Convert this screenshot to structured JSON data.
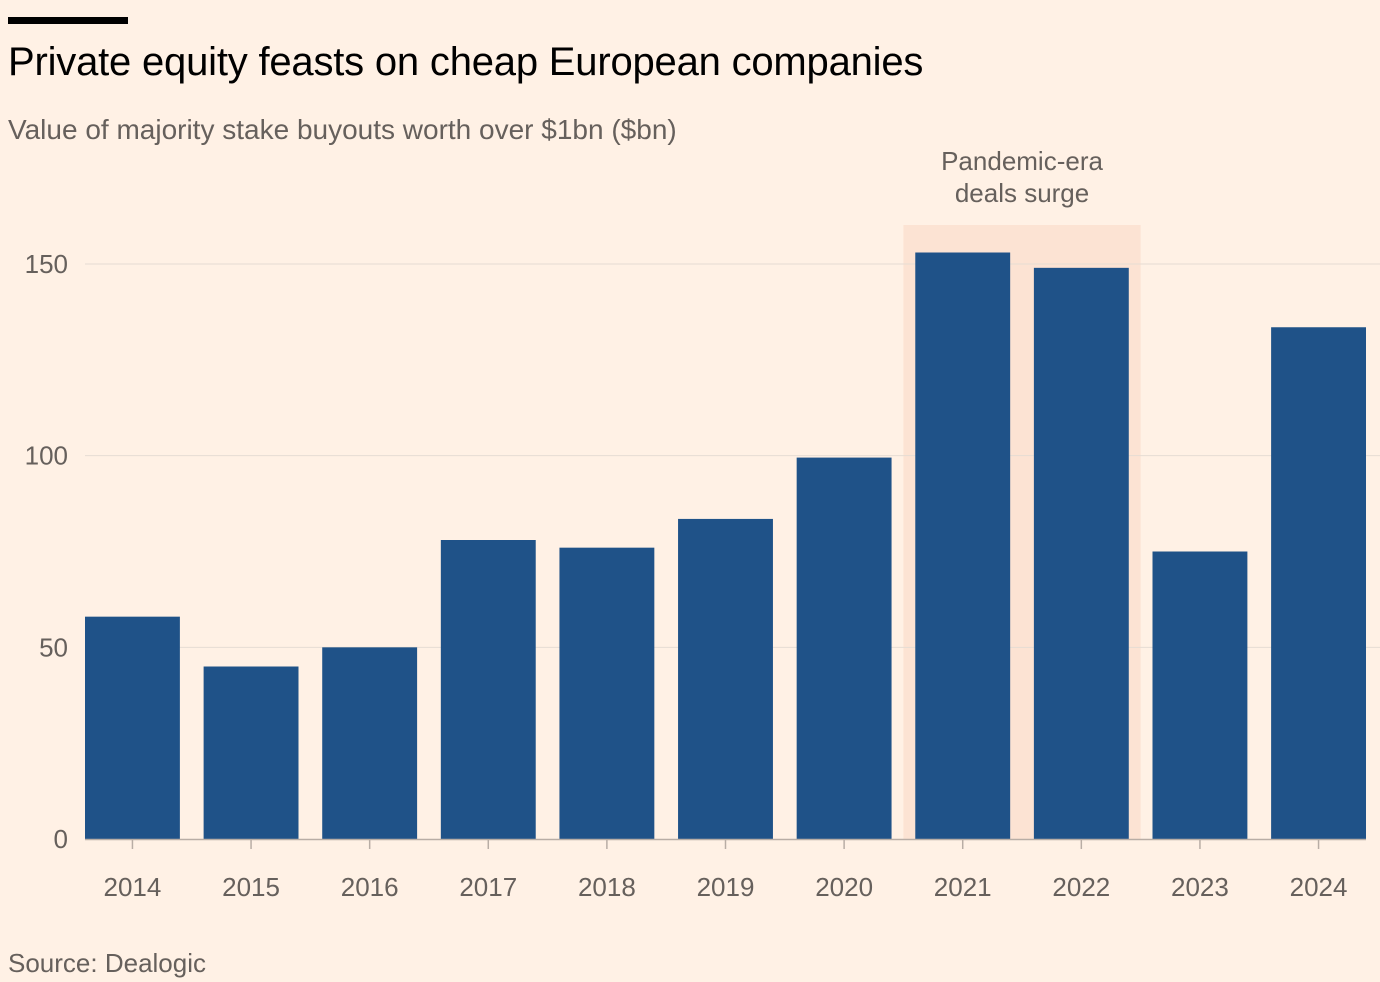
{
  "header": {
    "title": "Private equity feasts on cheap European companies",
    "subtitle": "Value of majority stake buyouts worth over $1bn ($bn)"
  },
  "footer": {
    "source": "Source: Dealogic"
  },
  "colors": {
    "background": "#FFF1E5",
    "bar": "#1F5288",
    "highlight": "#FCE3D3",
    "gridline": "#E6DCD3",
    "text": "#66605C",
    "title": "#000000"
  },
  "chart_data": {
    "type": "bar",
    "title": "Private equity feasts on cheap European companies",
    "subtitle": "Value of majority stake buyouts worth over $1bn ($bn)",
    "categories": [
      "2014",
      "2015",
      "2016",
      "2017",
      "2018",
      "2019",
      "2020",
      "2021",
      "2022",
      "2023",
      "2024"
    ],
    "values": [
      58,
      45,
      50,
      78,
      76,
      83.5,
      99.5,
      153,
      149,
      75,
      133.5
    ],
    "ylim": [
      0,
      150
    ],
    "yticks": [
      0,
      50,
      100,
      150
    ],
    "xlabel": "",
    "ylabel": "",
    "grid": true,
    "annotations": [
      {
        "label_lines": [
          "Pandemic-era",
          "deals surge"
        ],
        "from_category": "2021",
        "to_category": "2022"
      }
    ],
    "source": "Source: Dealogic"
  }
}
